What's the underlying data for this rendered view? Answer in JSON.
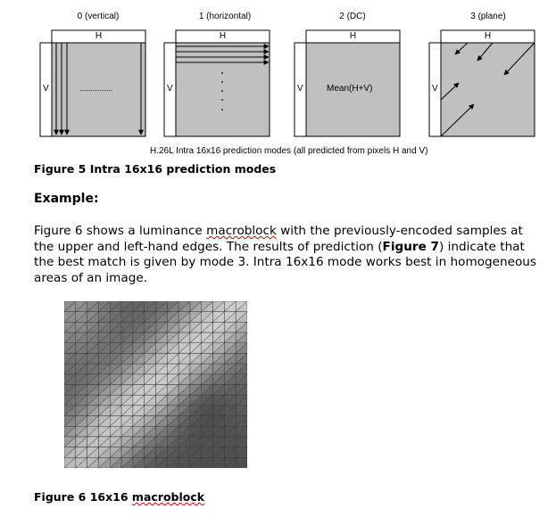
{
  "diagram": {
    "modes": [
      {
        "title": "0 (vertical)",
        "top_label": "H",
        "side_label": "V",
        "center_text": "..............."
      },
      {
        "title": "1 (horizontal)",
        "top_label": "H",
        "side_label": "V",
        "center_text": ". . . . . . ."
      },
      {
        "title": "2 (DC)",
        "top_label": "H",
        "side_label": "V",
        "center_text": "Mean(H+V)"
      },
      {
        "title": "3 (plane)",
        "top_label": "H",
        "side_label": "V",
        "center_text": ""
      }
    ],
    "caption": "H.26L Intra 16x16 prediction modes (all predicted from pixels H and V)",
    "colors": {
      "fill": "#c0c0c0",
      "stroke": "#000000"
    }
  },
  "figure5_caption": "Figure 5 Intra 16x16 prediction modes",
  "example_heading": "Example:",
  "paragraph": {
    "part1": "Figure 6 shows a luminance ",
    "word_macroblock": "macroblock",
    "part2": " with the previously-encoded samples at the upper and left-hand edges. The results of prediction (",
    "fig7": "Figure 7",
    "part3": ") indicate that the best match is given by mode 3. Intra 16x16 mode works best in homogeneous areas of an image."
  },
  "figure6_caption_prefix": "Figure 6 16x16 ",
  "figure6_caption_word": "macroblock"
}
